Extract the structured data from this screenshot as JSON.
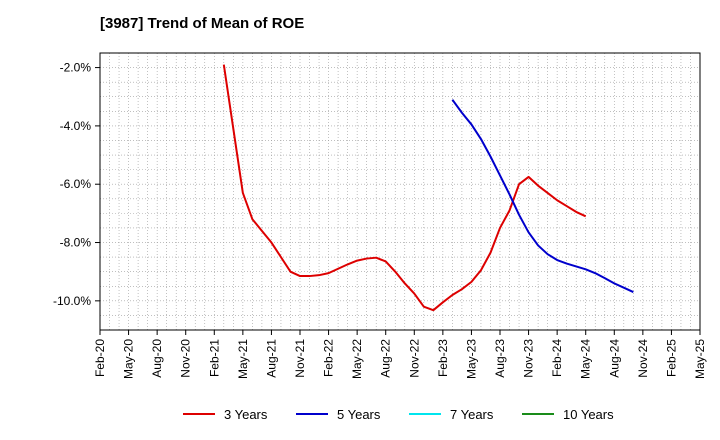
{
  "chart_data": {
    "type": "line",
    "title": "[3987]  Trend of Mean of ROE",
    "xlabel": "",
    "ylabel": "",
    "ylim": [
      -11.0,
      -1.5
    ],
    "yticks": [
      -2.0,
      -4.0,
      -6.0,
      -8.0,
      -10.0
    ],
    "ytick_labels": [
      "-2.0%",
      "-4.0%",
      "-6.0%",
      "-8.0%",
      "-10.0%"
    ],
    "x_ticks": [
      "Feb-20",
      "May-20",
      "Aug-20",
      "Nov-20",
      "Feb-21",
      "May-21",
      "Aug-21",
      "Nov-21",
      "Feb-22",
      "May-22",
      "Aug-22",
      "Nov-22",
      "Feb-23",
      "May-23",
      "Aug-23",
      "Nov-23",
      "Feb-24",
      "May-24",
      "Aug-24",
      "Nov-24",
      "Feb-25",
      "May-25"
    ],
    "grid": true,
    "legend_position": "bottom",
    "series": [
      {
        "name": "3 Years",
        "color": "#dd0000",
        "start_index": 13,
        "values": [
          -1.9,
          -4.1,
          -6.3,
          -7.2,
          -7.6,
          -8.0,
          -8.5,
          -9.0,
          -9.15,
          -9.15,
          -9.12,
          -9.05,
          -8.9,
          -8.75,
          -8.62,
          -8.55,
          -8.52,
          -8.65,
          -9.0,
          -9.4,
          -9.75,
          -10.2,
          -10.32,
          -10.05,
          -9.8,
          -9.6,
          -9.35,
          -8.95,
          -8.35,
          -7.5,
          -6.9,
          -6.0,
          -5.75,
          -6.05,
          -6.3,
          -6.55,
          -6.75,
          -6.95,
          -7.1
        ]
      },
      {
        "name": "5 Years",
        "color": "#0000cc",
        "start_index": 37,
        "values": [
          -3.1,
          -3.55,
          -3.95,
          -4.45,
          -5.05,
          -5.7,
          -6.35,
          -7.05,
          -7.65,
          -8.1,
          -8.4,
          -8.6,
          -8.72,
          -8.82,
          -8.92,
          -9.05,
          -9.22,
          -9.4,
          -9.55,
          -9.7
        ]
      },
      {
        "name": "7 Years",
        "color": "#00e5ee",
        "start_index": 0,
        "values": []
      },
      {
        "name": "10 Years",
        "color": "#1a8c1a",
        "start_index": 0,
        "values": []
      }
    ]
  }
}
